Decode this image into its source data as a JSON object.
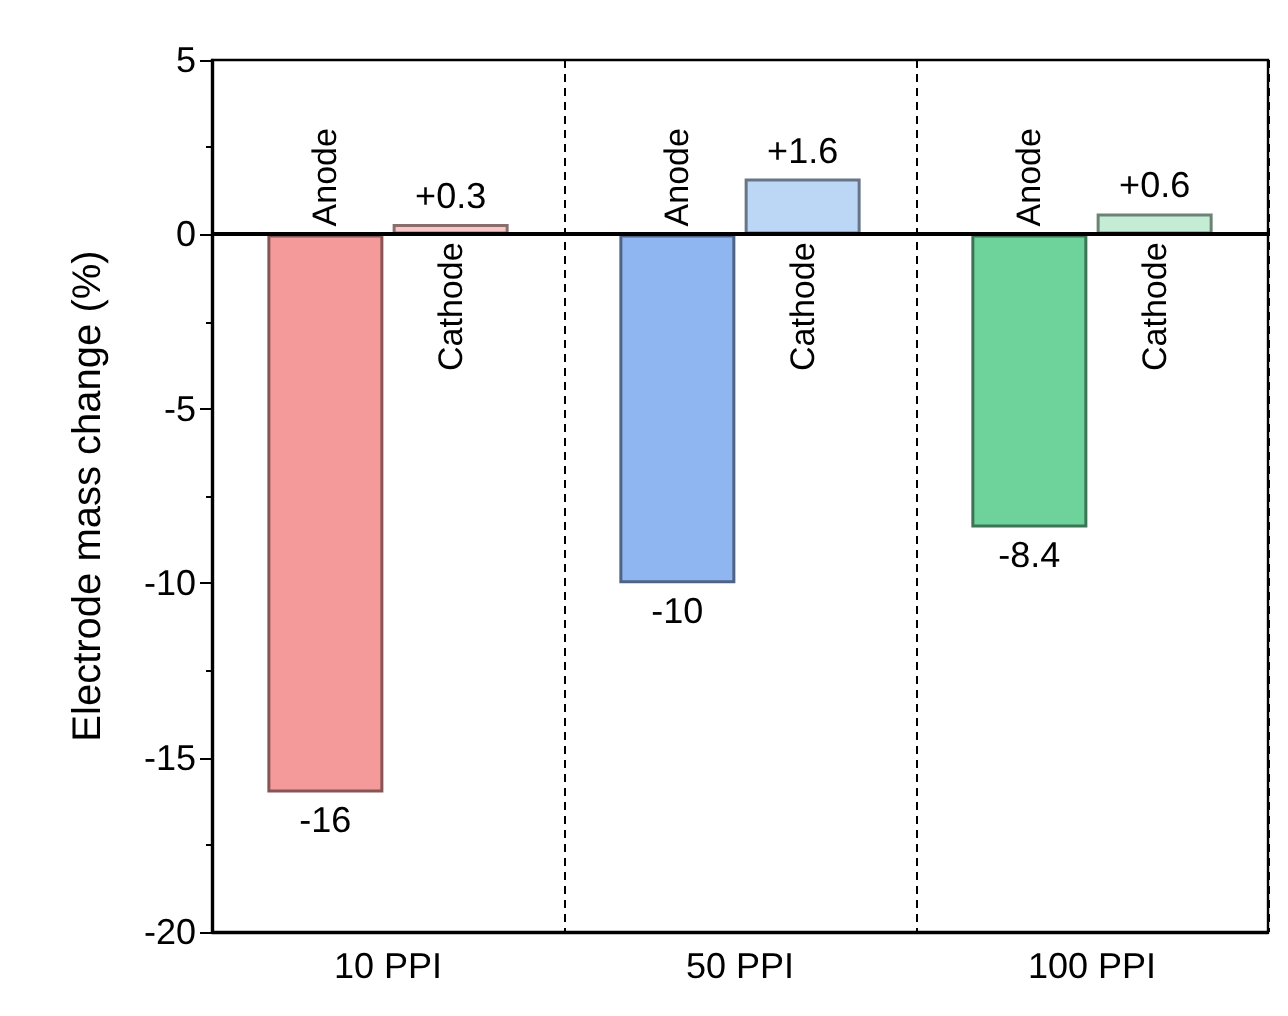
{
  "chart_data": {
    "type": "bar",
    "ylabel": "Electrode mass change (%)",
    "categories": [
      "10 PPI",
      "50 PPI",
      "100 PPI"
    ],
    "series": [
      {
        "name": "Anode",
        "colors": [
          "#f59a9a",
          "#8fb6f0",
          "#6ed39b"
        ],
        "values": [
          -16,
          -10,
          -8.4
        ],
        "value_labels": [
          "-16",
          "-10",
          "-8.4"
        ]
      },
      {
        "name": "Cathode",
        "colors": [
          "#fbc8c8",
          "#bcd6f6",
          "#c5ecd5"
        ],
        "values": [
          0.3,
          1.6,
          0.6
        ],
        "value_labels": [
          "+0.3",
          "+1.6",
          "+0.6"
        ]
      }
    ],
    "ylim": [
      -20,
      5
    ],
    "yticks": [
      -20,
      -15,
      -10,
      -5,
      0,
      5
    ],
    "grid": "x",
    "legend": false,
    "ref_lines": [
      {
        "axis": "y",
        "value": 0
      }
    ]
  }
}
